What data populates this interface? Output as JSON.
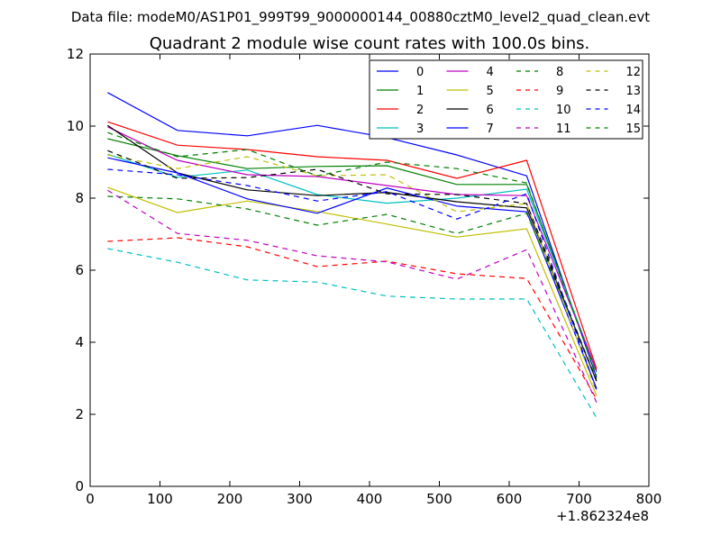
{
  "header": {
    "file_label": "Data file: modeM0/AS1P01_999T99_9000000144_00880cztM0_level2_quad_clean.evt"
  },
  "chart_data": {
    "type": "line",
    "title": "Quadrant 2 module wise count rates with 100.0s bins.",
    "xlabel": "",
    "ylabel": "",
    "x_offset_label": "+1.862324e8",
    "xlim": [
      0,
      800
    ],
    "ylim": [
      0,
      12
    ],
    "xticks": [
      0,
      100,
      200,
      300,
      400,
      500,
      600,
      700,
      800
    ],
    "yticks": [
      0,
      2,
      4,
      6,
      8,
      10,
      12
    ],
    "grid": false,
    "legend_position": "top-right",
    "x": [
      25,
      125,
      225,
      325,
      425,
      525,
      625,
      725
    ],
    "series": [
      {
        "name": "0",
        "color": "#0000ff",
        "style": "solid",
        "values": [
          10.93,
          9.88,
          9.73,
          10.02,
          9.68,
          9.2,
          8.62,
          3.02
        ]
      },
      {
        "name": "1",
        "color": "#008000",
        "style": "solid",
        "values": [
          9.65,
          9.18,
          8.82,
          8.88,
          8.9,
          8.38,
          8.38,
          3.17
        ]
      },
      {
        "name": "2",
        "color": "#ff0000",
        "style": "solid",
        "values": [
          10.12,
          9.47,
          9.35,
          9.15,
          9.05,
          8.55,
          9.05,
          3.27
        ]
      },
      {
        "name": "3",
        "color": "#00bfbf",
        "style": "solid",
        "values": [
          9.22,
          8.58,
          8.78,
          8.1,
          7.86,
          8.0,
          8.25,
          3.22
        ]
      },
      {
        "name": "4",
        "color": "#bf00bf",
        "style": "solid",
        "values": [
          9.98,
          9.05,
          8.65,
          8.6,
          8.35,
          8.1,
          8.07,
          3.22
        ]
      },
      {
        "name": "5",
        "color": "#bfbf00",
        "style": "solid",
        "values": [
          8.3,
          7.6,
          7.92,
          7.63,
          7.28,
          6.92,
          7.15,
          2.52
        ]
      },
      {
        "name": "6",
        "color": "#000000",
        "style": "solid",
        "values": [
          10.02,
          8.7,
          8.23,
          8.07,
          8.16,
          7.9,
          7.73,
          2.92
        ]
      },
      {
        "name": "7",
        "color": "#0000ff",
        "style": "solid",
        "values": [
          9.12,
          8.7,
          7.98,
          7.58,
          8.28,
          7.78,
          7.62,
          2.72
        ]
      },
      {
        "name": "8",
        "color": "#008000",
        "style": "dashed",
        "values": [
          8.05,
          7.98,
          7.7,
          7.25,
          7.55,
          7.02,
          7.58,
          2.97
        ]
      },
      {
        "name": "9",
        "color": "#ff0000",
        "style": "dashed",
        "values": [
          6.8,
          6.9,
          6.65,
          6.1,
          6.25,
          5.9,
          5.77,
          2.42
        ]
      },
      {
        "name": "10",
        "color": "#00bfbf",
        "style": "dashed",
        "values": [
          6.6,
          6.22,
          5.73,
          5.67,
          5.28,
          5.2,
          5.2,
          1.9
        ]
      },
      {
        "name": "11",
        "color": "#bf00bf",
        "style": "dashed",
        "values": [
          8.22,
          7.02,
          6.83,
          6.4,
          6.23,
          5.75,
          6.57,
          2.33
        ]
      },
      {
        "name": "12",
        "color": "#bfbf00",
        "style": "dashed",
        "values": [
          9.2,
          8.82,
          9.15,
          8.62,
          8.65,
          7.62,
          7.85,
          2.62
        ]
      },
      {
        "name": "13",
        "color": "#000000",
        "style": "dashed",
        "values": [
          9.32,
          8.55,
          8.57,
          8.8,
          8.12,
          8.1,
          7.85,
          2.92
        ]
      },
      {
        "name": "14",
        "color": "#0000ff",
        "style": "dashed",
        "values": [
          8.8,
          8.65,
          8.35,
          7.92,
          8.18,
          7.42,
          8.12,
          2.67
        ]
      },
      {
        "name": "15",
        "color": "#008000",
        "style": "dashed",
        "values": [
          9.82,
          9.15,
          9.35,
          8.62,
          9.0,
          8.82,
          8.42,
          3.07
        ]
      }
    ]
  }
}
